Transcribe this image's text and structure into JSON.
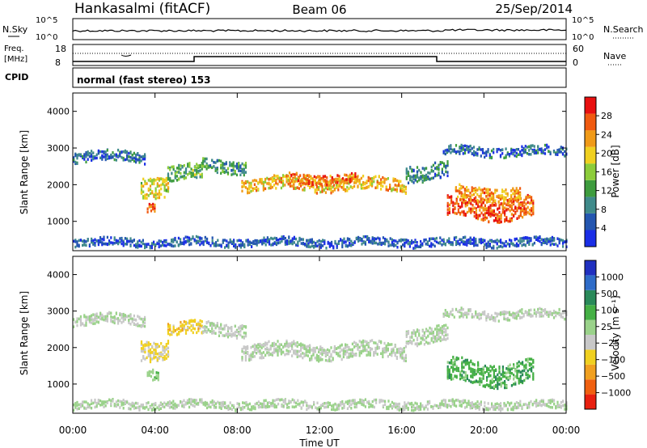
{
  "header": {
    "station": "Hankasalmi (fitACF)",
    "beam": "Beam 06",
    "date": "25/Sep/2014"
  },
  "noise_panel": {
    "left_label": "N.Sky",
    "right_label": "N.Search",
    "ticks_left": [
      "10^5",
      "10^0"
    ],
    "ticks_right": [
      "10^5",
      "10^0"
    ]
  },
  "freq_panel": {
    "left_label_1": "Freq.",
    "left_label_2": "[MHz]",
    "left_ticks": [
      "18",
      "8"
    ],
    "right_label": "Nave",
    "right_ticks": [
      "60",
      "0"
    ],
    "cpid_label": "CPID",
    "mode_text": "normal (fast stereo) 153"
  },
  "colors": {
    "power_scale": [
      "#1a2ee6",
      "#2456b0",
      "#3f8a8a",
      "#3e9c3e",
      "#8ccc3a",
      "#f0d020",
      "#f09a18",
      "#f05a10",
      "#e81010"
    ],
    "velocity_scale": [
      "#2030c0",
      "#2e6cc8",
      "#2a8a5a",
      "#45b045",
      "#9ad28a",
      "#c8c8c8",
      "#f0d020",
      "#f0a020",
      "#f06010",
      "#e82010"
    ]
  },
  "chart_data": [
    {
      "type": "heatmap",
      "title": "Power",
      "ylabel": "Slant Range [km]",
      "xlabel": "",
      "x": [
        "00:00",
        "04:00",
        "08:00",
        "12:00",
        "16:00",
        "20:00",
        "00:00"
      ],
      "y_ticks": [
        "1000",
        "2000",
        "3000",
        "4000"
      ],
      "ylim": [
        200,
        4500
      ],
      "colorbar_label": "Power [dB]",
      "colorbar_ticks": [
        "4",
        "8",
        "12",
        "16",
        "20",
        "24",
        "28"
      ],
      "colorbar_range": [
        0,
        30
      ],
      "regions": [
        {
          "t0": 0.0,
          "t1": 3.5,
          "r": 2750,
          "dr": 180,
          "level": 6
        },
        {
          "t0": 3.3,
          "t1": 4.6,
          "r": 2000,
          "dr": 350,
          "level": 18
        },
        {
          "t0": 3.6,
          "t1": 4.0,
          "r": 1400,
          "dr": 150,
          "level": 26
        },
        {
          "t0": 4.6,
          "t1": 6.3,
          "r": 2300,
          "dr": 260,
          "level": 12
        },
        {
          "t0": 6.3,
          "t1": 8.4,
          "r": 2500,
          "dr": 220,
          "level": 10
        },
        {
          "t0": 8.2,
          "t1": 16.2,
          "r": 2000,
          "dr": 220,
          "level": 20
        },
        {
          "t0": 10.5,
          "t1": 13.8,
          "r": 2150,
          "dr": 160,
          "level": 24
        },
        {
          "t0": 16.2,
          "t1": 18.2,
          "r": 2350,
          "dr": 280,
          "level": 8
        },
        {
          "t0": 18.2,
          "t1": 22.4,
          "r": 1350,
          "dr": 350,
          "level": 25
        },
        {
          "t0": 18.6,
          "t1": 21.8,
          "r": 1750,
          "dr": 220,
          "level": 22
        },
        {
          "t0": 18.0,
          "t1": 24.0,
          "r": 2900,
          "dr": 160,
          "level": 6
        },
        {
          "t0": 0.0,
          "t1": 24.0,
          "r": 420,
          "dr": 140,
          "level": 5
        }
      ]
    },
    {
      "type": "heatmap",
      "title": "Velocity",
      "ylabel": "Slant Range [km]",
      "xlabel": "Time UT",
      "x": [
        "00:00",
        "04:00",
        "08:00",
        "12:00",
        "16:00",
        "20:00",
        "00:00"
      ],
      "y_ticks": [
        "1000",
        "2000",
        "3000",
        "4000"
      ],
      "ylim": [
        200,
        4500
      ],
      "colorbar_label": "Velocity [m s⁻¹]",
      "colorbar_ticks": [
        "1000",
        "500",
        "100",
        "25",
        "−25",
        "−100",
        "−500",
        "−1000"
      ],
      "colorbar_range": [
        -1000,
        1000
      ],
      "regions": [
        {
          "t0": 0.0,
          "t1": 3.5,
          "r": 2750,
          "dr": 180,
          "level": 0
        },
        {
          "t0": 3.3,
          "t1": 4.6,
          "r": 2000,
          "dr": 350,
          "level": -200
        },
        {
          "t0": 3.6,
          "t1": 4.2,
          "r": 1300,
          "dr": 180,
          "level": 150
        },
        {
          "t0": 4.6,
          "t1": 6.3,
          "r": 2500,
          "dr": 220,
          "level": -300
        },
        {
          "t0": 6.3,
          "t1": 8.4,
          "r": 2500,
          "dr": 220,
          "level": 0
        },
        {
          "t0": 8.2,
          "t1": 16.2,
          "r": 1900,
          "dr": 260,
          "level": 0
        },
        {
          "t0": 16.2,
          "t1": 18.2,
          "r": 2350,
          "dr": 280,
          "level": 0
        },
        {
          "t0": 18.2,
          "t1": 22.4,
          "r": 1300,
          "dr": 380,
          "level": 300
        },
        {
          "t0": 18.0,
          "t1": 24.0,
          "r": 2900,
          "dr": 160,
          "level": 0
        },
        {
          "t0": 0.0,
          "t1": 24.0,
          "r": 420,
          "dr": 140,
          "level": 30
        }
      ]
    }
  ]
}
